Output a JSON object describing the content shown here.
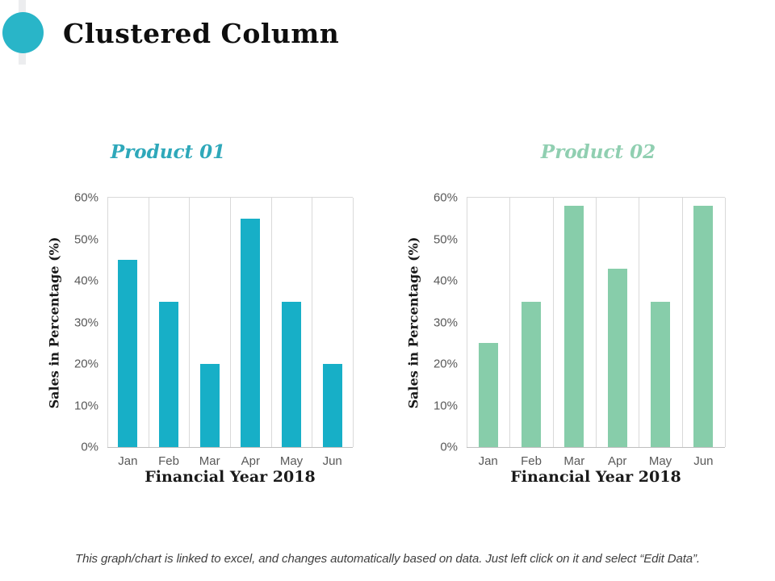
{
  "title": "Clustered Column",
  "footer_note": "This graph/chart is linked to excel, and changes automatically based on data. Just left click on it and select “Edit Data”.",
  "colors": {
    "accent_teal": "#29B5C8",
    "bar_teal": "#17AFC7",
    "bar_green": "#87CDAA",
    "product01_title": "#2EA8BA",
    "product02_title": "#90CFB1",
    "gridline": "#D9D9D9",
    "tick_text": "#595959"
  },
  "chart_data": [
    {
      "type": "bar",
      "title": "Product 01",
      "xlabel": "Financial Year 2018",
      "ylabel": "Sales in Percentage (%)",
      "categories": [
        "Jan",
        "Feb",
        "Mar",
        "Apr",
        "May",
        "Jun"
      ],
      "values": [
        45,
        35,
        20,
        55,
        35,
        20
      ],
      "unit": "%",
      "ylim": [
        0,
        60
      ],
      "ytick_labels": [
        "0%",
        "10%",
        "20%",
        "30%",
        "40%",
        "50%",
        "60%"
      ],
      "grid": "vertical-only",
      "legend": "none",
      "bar_color": "#17AFC7",
      "title_color": "#2EA8BA"
    },
    {
      "type": "bar",
      "title": "Product 02",
      "xlabel": "Financial Year 2018",
      "ylabel": "Sales in Percentage (%)",
      "categories": [
        "Jan",
        "Feb",
        "Mar",
        "Apr",
        "May",
        "Jun"
      ],
      "values": [
        25,
        35,
        58,
        43,
        35,
        58
      ],
      "unit": "%",
      "ylim": [
        0,
        60
      ],
      "ytick_labels": [
        "0%",
        "10%",
        "20%",
        "30%",
        "40%",
        "50%",
        "60%"
      ],
      "grid": "vertical-only",
      "legend": "none",
      "bar_color": "#87CDAA",
      "title_color": "#90CFB1"
    }
  ]
}
